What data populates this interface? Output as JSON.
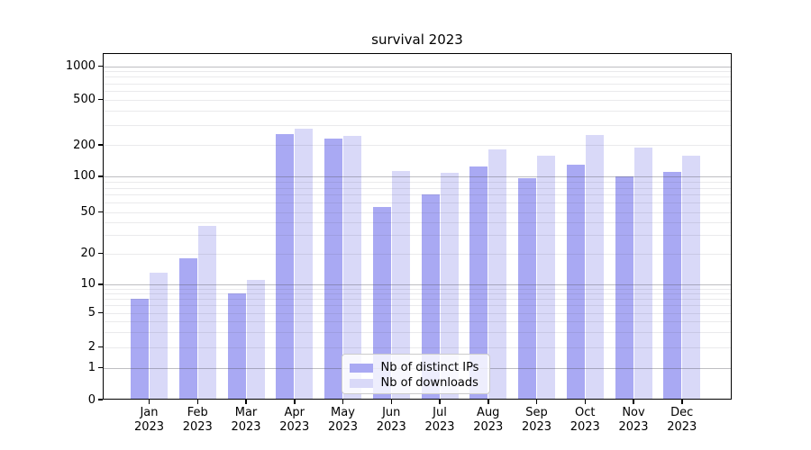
{
  "chart_data": {
    "type": "bar",
    "title": "survival 2023",
    "categories": [
      "Jan 2023",
      "Feb 2023",
      "Mar 2023",
      "Apr 2023",
      "May 2023",
      "Jun 2023",
      "Jul 2023",
      "Aug 2023",
      "Sep 2023",
      "Oct 2023",
      "Nov 2023",
      "Dec 2023"
    ],
    "month_labels": [
      "Jan",
      "Feb",
      "Mar",
      "Apr",
      "May",
      "Jun",
      "Jul",
      "Aug",
      "Sep",
      "Oct",
      "Nov",
      "Dec"
    ],
    "year": "2023",
    "series": [
      {
        "name": "Nb of distinct IPs",
        "color": "#a9a9f3",
        "values": [
          7,
          18,
          8,
          250,
          228,
          55,
          70,
          124,
          96,
          130,
          99,
          111
        ]
      },
      {
        "name": "Nb of downloads",
        "color": "#d9d9f8",
        "values": [
          13,
          37,
          11,
          276,
          240,
          113,
          107,
          180,
          158,
          243,
          187,
          158
        ]
      }
    ],
    "yscale": "symlog",
    "yticks": [
      0,
      1,
      2,
      5,
      10,
      20,
      50,
      100,
      200,
      500,
      1000
    ],
    "ylim": [
      0,
      1365
    ],
    "xlabel": "",
    "ylabel": "",
    "grid": true,
    "legend_position": "lower center"
  },
  "colors": {
    "bar_distinct_ips": "#a9a9f3",
    "bar_downloads": "#d9d9f8",
    "grid_major": "#b0b0b6",
    "grid_minor": "#e6e6e9",
    "spine": "#000000",
    "legend_border": "#cccccc",
    "background": "#ffffff"
  }
}
